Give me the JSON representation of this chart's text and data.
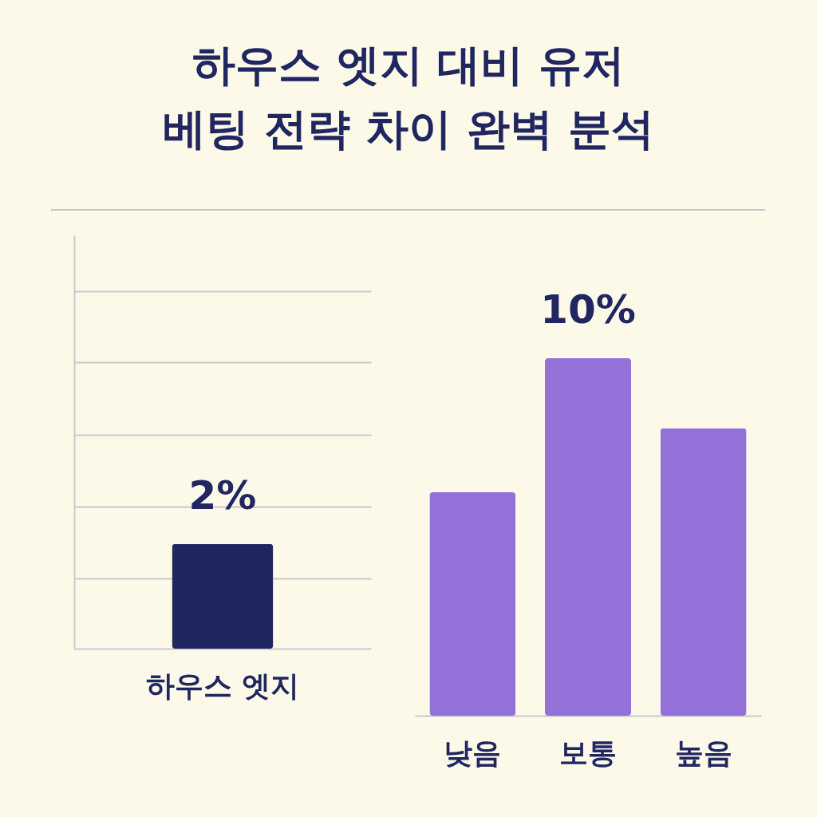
{
  "chart_data": [
    {
      "type": "bar",
      "title": "하우스 엣지 대비 유저\n베팅 전략 차이 완벽 분석",
      "categories": [
        "하우스 엣지"
      ],
      "values": [
        2
      ],
      "value_labels": [
        "2%"
      ],
      "color": "#1f2760",
      "ylim": [
        0,
        7.9
      ],
      "yticks": [
        {
          "value": 1.34,
          "label": null
        },
        {
          "value": 2.72,
          "label": null
        },
        {
          "value": 4.09,
          "label": null
        },
        {
          "value": 5.47,
          "label": null
        },
        {
          "value": 6.84,
          "label": null
        }
      ],
      "grid": "y",
      "tick_labels": "x"
    },
    {
      "type": "bar",
      "categories": [
        "낮음",
        "보통",
        "높음"
      ],
      "values": [
        6.25,
        10,
        8.04
      ],
      "value_labels": [
        null,
        "10%",
        null
      ],
      "color": "#9471d9",
      "tick_labels": "x"
    }
  ]
}
